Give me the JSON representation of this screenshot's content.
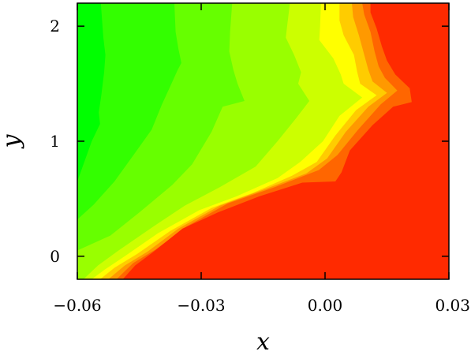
{
  "chart_data": {
    "type": "heatmap",
    "title": "",
    "xlabel": "x",
    "ylabel": "y",
    "xlim": [
      -0.06,
      0.03
    ],
    "ylim": [
      -0.2,
      2.2
    ],
    "x_ticks": [
      {
        "value": -0.06,
        "label": "−0.06"
      },
      {
        "value": -0.03,
        "label": "−0.03"
      },
      {
        "value": 0.0,
        "label": "0.00"
      },
      {
        "value": 0.03,
        "label": "0.03"
      }
    ],
    "y_ticks": [
      {
        "value": 0,
        "label": "0"
      },
      {
        "value": 1,
        "label": "1"
      },
      {
        "value": 2,
        "label": "2"
      }
    ],
    "grid": false,
    "colors": [
      "#00ff00",
      "#33ff00",
      "#66ff00",
      "#99ff00",
      "#ccff00",
      "#ffff00",
      "#ffcc00",
      "#ff9900",
      "#ff6600",
      "#ff2a00"
    ],
    "levels": [
      {
        "color": "#33ff00",
        "boundary": [
          [
            -0.0543,
            2.2
          ],
          [
            -0.0537,
            1.9
          ],
          [
            -0.0532,
            1.75
          ],
          [
            -0.0535,
            1.6
          ],
          [
            -0.0542,
            1.4
          ],
          [
            -0.0548,
            1.25
          ],
          [
            -0.0545,
            1.15
          ],
          [
            -0.0565,
            1.0
          ],
          [
            -0.0585,
            0.8
          ],
          [
            -0.06,
            0.65
          ]
        ]
      },
      {
        "color": "#66ff00",
        "boundary": [
          [
            -0.0365,
            2.2
          ],
          [
            -0.0362,
            1.95
          ],
          [
            -0.0355,
            1.8
          ],
          [
            -0.0348,
            1.68
          ],
          [
            -0.0357,
            1.62
          ],
          [
            -0.0372,
            1.5
          ],
          [
            -0.0395,
            1.32
          ],
          [
            -0.042,
            1.1
          ],
          [
            -0.046,
            0.9
          ],
          [
            -0.051,
            0.65
          ],
          [
            -0.056,
            0.45
          ],
          [
            -0.06,
            0.32
          ]
        ]
      },
      {
        "color": "#99ff00",
        "boundary": [
          [
            -0.0225,
            2.2
          ],
          [
            -0.023,
            1.95
          ],
          [
            -0.0232,
            1.78
          ],
          [
            -0.0222,
            1.62
          ],
          [
            -0.0212,
            1.5
          ],
          [
            -0.0195,
            1.35
          ],
          [
            -0.0248,
            1.3
          ],
          [
            -0.0275,
            1.08
          ],
          [
            -0.0322,
            0.8
          ],
          [
            -0.037,
            0.62
          ],
          [
            -0.045,
            0.38
          ],
          [
            -0.052,
            0.18
          ],
          [
            -0.06,
            0.05
          ]
        ]
      },
      {
        "color": "#ccff00",
        "boundary": [
          [
            -0.0085,
            2.2
          ],
          [
            -0.0092,
            2.0
          ],
          [
            -0.0095,
            1.9
          ],
          [
            -0.0075,
            1.75
          ],
          [
            -0.0058,
            1.6
          ],
          [
            -0.0065,
            1.5
          ],
          [
            -0.0038,
            1.35
          ],
          [
            -0.007,
            1.2
          ],
          [
            -0.0115,
            1.0
          ],
          [
            -0.0168,
            0.78
          ],
          [
            -0.0255,
            0.6
          ],
          [
            -0.034,
            0.44
          ],
          [
            -0.0415,
            0.26
          ],
          [
            -0.05,
            0.05
          ],
          [
            -0.055,
            -0.08
          ],
          [
            -0.0585,
            -0.2
          ]
        ]
      },
      {
        "color": "#ffff00",
        "boundary": [
          [
            -0.001,
            2.2
          ],
          [
            -0.0012,
            2.0
          ],
          [
            -0.0014,
            1.88
          ],
          [
            0.002,
            1.72
          ],
          [
            0.0038,
            1.58
          ],
          [
            0.0045,
            1.5
          ],
          [
            0.009,
            1.38
          ],
          [
            0.0035,
            1.22
          ],
          [
            -0.0005,
            1.0
          ],
          [
            -0.006,
            0.82
          ],
          [
            -0.0115,
            0.68
          ],
          [
            -0.0215,
            0.52
          ],
          [
            -0.0305,
            0.4
          ],
          [
            -0.0405,
            0.2
          ],
          [
            -0.0485,
            0.0
          ],
          [
            -0.0535,
            -0.12
          ],
          [
            -0.0565,
            -0.2
          ]
        ]
      },
      {
        "color": "#ffcc00",
        "boundary": [
          [
            0.0035,
            2.2
          ],
          [
            0.0035,
            2.05
          ],
          [
            0.0045,
            1.92
          ],
          [
            0.007,
            1.75
          ],
          [
            0.0078,
            1.6
          ],
          [
            0.0085,
            1.5
          ],
          [
            0.0125,
            1.4
          ],
          [
            0.0075,
            1.27
          ],
          [
            0.0025,
            1.05
          ],
          [
            -0.002,
            0.82
          ],
          [
            -0.008,
            0.7
          ],
          [
            -0.0175,
            0.55
          ],
          [
            -0.0275,
            0.42
          ],
          [
            -0.0375,
            0.22
          ],
          [
            -0.0455,
            0.02
          ],
          [
            -0.051,
            -0.1
          ],
          [
            -0.0545,
            -0.2
          ]
        ]
      },
      {
        "color": "#ff9900",
        "boundary": [
          [
            0.0065,
            2.2
          ],
          [
            0.0068,
            2.08
          ],
          [
            0.0082,
            1.92
          ],
          [
            0.0095,
            1.75
          ],
          [
            0.0105,
            1.62
          ],
          [
            0.0115,
            1.52
          ],
          [
            0.015,
            1.42
          ],
          [
            0.0105,
            1.3
          ],
          [
            0.005,
            1.08
          ],
          [
            0.0005,
            0.85
          ],
          [
            -0.0045,
            0.72
          ],
          [
            -0.0148,
            0.58
          ],
          [
            -0.0255,
            0.44
          ],
          [
            -0.0355,
            0.24
          ],
          [
            -0.043,
            0.04
          ],
          [
            -0.0485,
            -0.08
          ],
          [
            -0.0525,
            -0.2
          ]
        ]
      },
      {
        "color": "#ff6600",
        "boundary": [
          [
            0.009,
            2.2
          ],
          [
            0.0095,
            2.1
          ],
          [
            0.011,
            1.95
          ],
          [
            0.012,
            1.78
          ],
          [
            0.013,
            1.65
          ],
          [
            0.0145,
            1.55
          ],
          [
            0.0175,
            1.44
          ],
          [
            0.0135,
            1.32
          ],
          [
            0.008,
            1.1
          ],
          [
            0.003,
            0.88
          ],
          [
            -0.0015,
            0.75
          ],
          [
            -0.0122,
            0.6
          ],
          [
            -0.0235,
            0.46
          ],
          [
            -0.0335,
            0.26
          ],
          [
            -0.041,
            0.06
          ],
          [
            -0.0465,
            -0.06
          ],
          [
            -0.0505,
            -0.2
          ]
        ]
      },
      {
        "color": "#ff2a00",
        "boundary": [
          [
            0.011,
            2.2
          ],
          [
            0.011,
            2.12
          ],
          [
            0.0125,
            1.98
          ],
          [
            0.0138,
            1.82
          ],
          [
            0.015,
            1.7
          ],
          [
            0.017,
            1.58
          ],
          [
            0.0205,
            1.46
          ],
          [
            0.021,
            1.34
          ],
          [
            0.0165,
            1.3
          ],
          [
            0.0115,
            1.14
          ],
          [
            0.006,
            0.92
          ],
          [
            0.004,
            0.73
          ],
          [
            0.0025,
            0.65
          ],
          [
            -0.0055,
            0.64
          ],
          [
            -0.016,
            0.52
          ],
          [
            -0.026,
            0.38
          ],
          [
            -0.0345,
            0.24
          ],
          [
            -0.0415,
            0.04
          ],
          [
            -0.046,
            -0.08
          ],
          [
            -0.049,
            -0.2
          ]
        ]
      }
    ]
  }
}
